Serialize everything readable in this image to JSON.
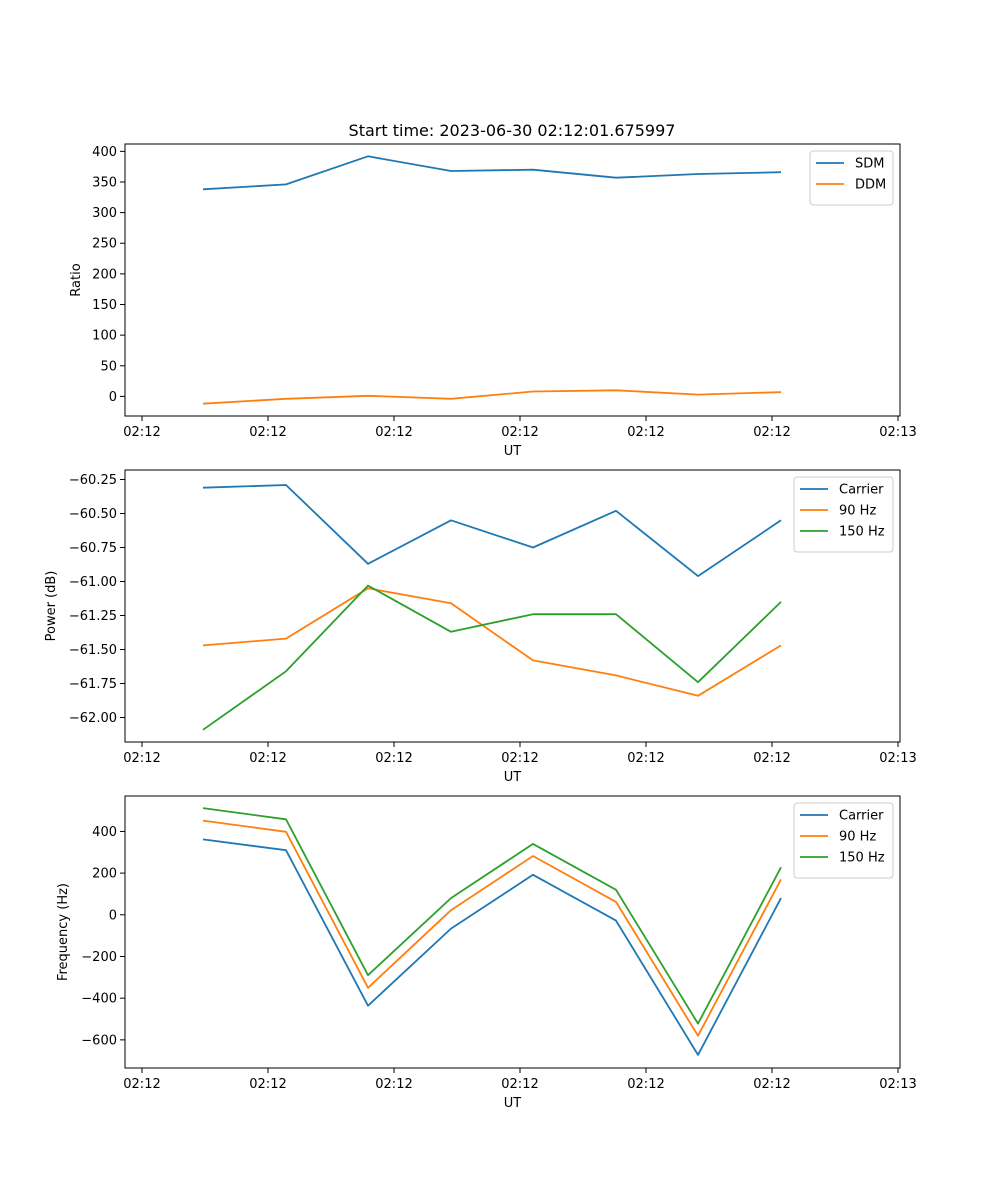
{
  "figure": {
    "title": "Start time: 2023-06-30 02:12:01.675997"
  },
  "chart_data": [
    {
      "type": "line",
      "title": "Start time: 2023-06-30 02:12:01.675997",
      "xlabel": "UT",
      "ylabel": "Ratio",
      "x_tick_labels": [
        "02:12",
        "02:12",
        "02:12",
        "02:12",
        "02:12",
        "02:12",
        "02:13"
      ],
      "y_ticks": [
        0,
        50,
        100,
        150,
        200,
        250,
        300,
        350,
        400
      ],
      "ylim": [
        -32,
        412
      ],
      "legend_position": "upper right",
      "series": [
        {
          "name": "SDM",
          "color": "#1f77b4",
          "values": [
            338,
            346,
            392,
            368,
            370,
            357,
            363,
            366
          ]
        },
        {
          "name": "DDM",
          "color": "#ff7f0e",
          "values": [
            -12,
            -4,
            1,
            -4,
            8,
            10,
            3,
            7
          ]
        }
      ]
    },
    {
      "type": "line",
      "xlabel": "UT",
      "ylabel": "Power (dB)",
      "x_tick_labels": [
        "02:12",
        "02:12",
        "02:12",
        "02:12",
        "02:12",
        "02:12",
        "02:13"
      ],
      "y_ticks": [
        -62.0,
        -61.75,
        -61.5,
        -61.25,
        -61.0,
        -60.75,
        -60.5,
        -60.25
      ],
      "y_tick_labels": [
        "−62.00",
        "−61.75",
        "−61.50",
        "−61.25",
        "−61.00",
        "−60.75",
        "−60.50",
        "−60.25"
      ],
      "ylim": [
        -62.18,
        -60.18
      ],
      "legend_position": "upper right",
      "series": [
        {
          "name": "Carrier",
          "color": "#1f77b4",
          "values": [
            -60.31,
            -60.29,
            -60.87,
            -60.55,
            -60.75,
            -60.48,
            -60.96,
            -60.55
          ]
        },
        {
          "name": "90 Hz",
          "color": "#ff7f0e",
          "values": [
            -61.47,
            -61.42,
            -61.05,
            -61.16,
            -61.58,
            -61.69,
            -61.84,
            -61.47
          ]
        },
        {
          "name": "150 Hz",
          "color": "#2ca02c",
          "values": [
            -62.09,
            -61.66,
            -61.03,
            -61.37,
            -61.24,
            -61.24,
            -61.74,
            -61.15
          ]
        }
      ]
    },
    {
      "type": "line",
      "xlabel": "UT",
      "ylabel": "Frequency (Hz)",
      "x_tick_labels": [
        "02:12",
        "02:12",
        "02:12",
        "02:12",
        "02:12",
        "02:12",
        "02:13"
      ],
      "y_ticks": [
        -600,
        -400,
        -200,
        0,
        200,
        400
      ],
      "y_tick_labels": [
        "−600",
        "−400",
        "−200",
        "0",
        "200",
        "400"
      ],
      "ylim": [
        -735,
        570
      ],
      "legend_position": "upper right",
      "series": [
        {
          "name": "Carrier",
          "color": "#1f77b4",
          "values": [
            362,
            310,
            -436,
            -66,
            192,
            -28,
            -672,
            80
          ]
        },
        {
          "name": "90 Hz",
          "color": "#ff7f0e",
          "values": [
            452,
            398,
            -350,
            22,
            282,
            62,
            -580,
            170
          ]
        },
        {
          "name": "150 Hz",
          "color": "#2ca02c",
          "values": [
            512,
            458,
            -290,
            80,
            340,
            120,
            -522,
            228
          ]
        }
      ]
    }
  ]
}
